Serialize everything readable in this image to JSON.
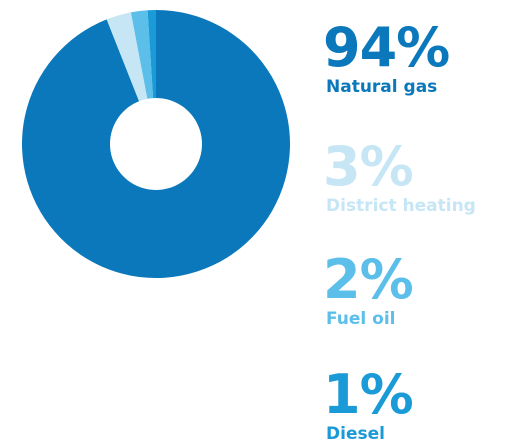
{
  "chart_data": {
    "type": "pie",
    "categories": [
      "Natural gas",
      "District heating",
      "Fuel oil",
      "Diesel"
    ],
    "values": [
      94,
      3,
      2,
      1
    ],
    "value_labels": [
      "94%",
      "3%",
      "2%",
      "1%"
    ],
    "colors": [
      "#0a78bb",
      "#c6e6f6",
      "#5cbfe9",
      "#1a9bd7"
    ],
    "donut": true
  }
}
